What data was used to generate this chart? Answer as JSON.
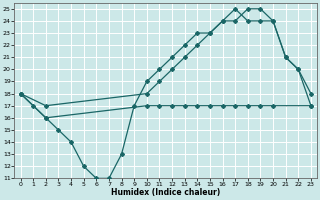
{
  "xlabel": "Humidex (Indice chaleur)",
  "xlim": [
    -0.5,
    23.5
  ],
  "ylim": [
    11,
    25.5
  ],
  "xticks": [
    0,
    1,
    2,
    3,
    4,
    5,
    6,
    7,
    8,
    9,
    10,
    11,
    12,
    13,
    14,
    15,
    16,
    17,
    18,
    19,
    20,
    21,
    22,
    23
  ],
  "yticks": [
    11,
    12,
    13,
    14,
    15,
    16,
    17,
    18,
    19,
    20,
    21,
    22,
    23,
    24,
    25
  ],
  "bg_color": "#cce8e8",
  "line_color": "#1a6666",
  "grid_color": "#b0d8d8",
  "line1_x": [
    0,
    1,
    2,
    3,
    4,
    5,
    6,
    7,
    8,
    9,
    10,
    11,
    12,
    13,
    14,
    15,
    16,
    17,
    18,
    19,
    20,
    21,
    22,
    23
  ],
  "line1_y": [
    18,
    17,
    16,
    15,
    14,
    12,
    11,
    11,
    13,
    17,
    19,
    20,
    21,
    22,
    23,
    23,
    24,
    24,
    25,
    25,
    24,
    21,
    20,
    18
  ],
  "line2_x": [
    0,
    2,
    10,
    11,
    12,
    13,
    14,
    15,
    16,
    17,
    18,
    19,
    20,
    21,
    22,
    23
  ],
  "line2_y": [
    18,
    17,
    18,
    19,
    20,
    21,
    22,
    23,
    24,
    25,
    24,
    24,
    24,
    21,
    20,
    17
  ],
  "line3_x": [
    0,
    2,
    10,
    11,
    12,
    13,
    14,
    15,
    16,
    17,
    18,
    19,
    20,
    23
  ],
  "line3_y": [
    18,
    16,
    17,
    17,
    17,
    17,
    17,
    17,
    17,
    17,
    17,
    17,
    17,
    17
  ]
}
